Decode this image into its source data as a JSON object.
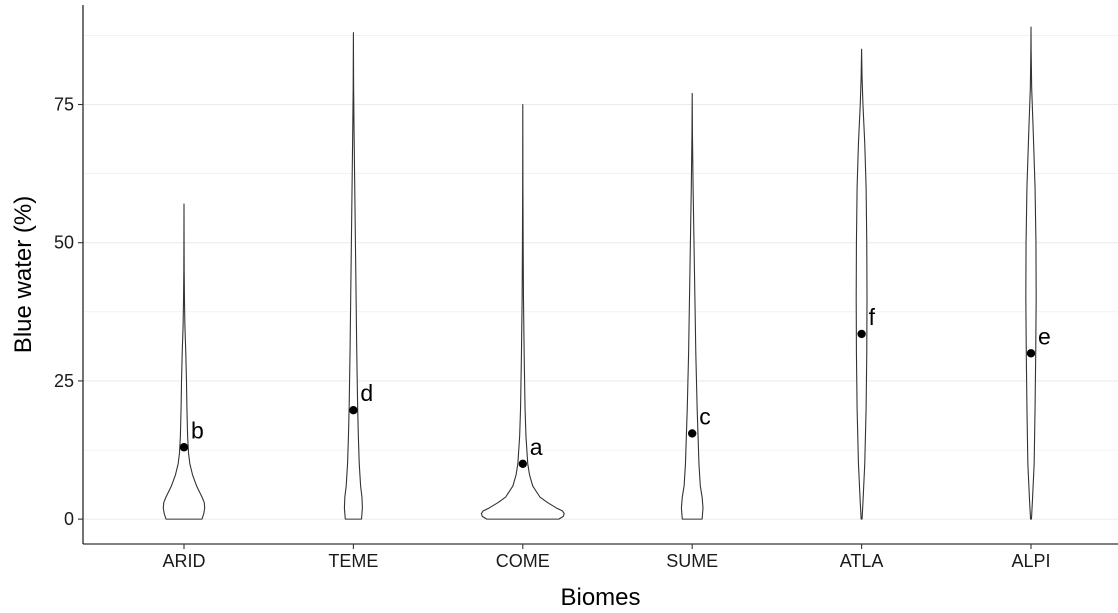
{
  "chart_data": {
    "type": "violin",
    "xlabel": "Biomes",
    "ylabel": "Blue water (%)",
    "ylim": [
      -4.5,
      93
    ],
    "yticks": [
      0,
      25,
      50,
      75
    ],
    "minor_gridlines": [
      12.5,
      37.5,
      62.5,
      87.5
    ],
    "grid": "horizontal",
    "categories": [
      "ARID",
      "TEME",
      "COME",
      "SUME",
      "ATLA",
      "ALPI"
    ],
    "violins": [
      {
        "category": "ARID",
        "min": 0,
        "max": 57,
        "mean": 13,
        "label": "b",
        "profile": [
          [
            0,
            0.4
          ],
          [
            1,
            0.44
          ],
          [
            2,
            0.46
          ],
          [
            3,
            0.45
          ],
          [
            4,
            0.4
          ],
          [
            5,
            0.34
          ],
          [
            6,
            0.28
          ],
          [
            8,
            0.19
          ],
          [
            10,
            0.13
          ],
          [
            12,
            0.1
          ],
          [
            15,
            0.08
          ],
          [
            20,
            0.065
          ],
          [
            25,
            0.055
          ],
          [
            30,
            0.04
          ],
          [
            35,
            0.02
          ],
          [
            40,
            0.01
          ],
          [
            45,
            0.004
          ],
          [
            50,
            0.002
          ],
          [
            57,
            0.0
          ]
        ]
      },
      {
        "category": "TEME",
        "min": 0,
        "max": 88,
        "mean": 19.7,
        "label": "d",
        "profile": [
          [
            0,
            0.18
          ],
          [
            2,
            0.2
          ],
          [
            4,
            0.19
          ],
          [
            6,
            0.16
          ],
          [
            10,
            0.13
          ],
          [
            15,
            0.11
          ],
          [
            20,
            0.095
          ],
          [
            25,
            0.085
          ],
          [
            30,
            0.075
          ],
          [
            40,
            0.06
          ],
          [
            50,
            0.045
          ],
          [
            60,
            0.03
          ],
          [
            70,
            0.015
          ],
          [
            78,
            0.005
          ],
          [
            88,
            0.0
          ]
        ]
      },
      {
        "category": "COME",
        "min": 0,
        "max": 75,
        "mean": 10,
        "label": "a",
        "profile": [
          [
            0,
            0.8
          ],
          [
            0.5,
            0.9
          ],
          [
            1,
            0.92
          ],
          [
            1.5,
            0.88
          ],
          [
            2,
            0.75
          ],
          [
            3,
            0.55
          ],
          [
            4,
            0.38
          ],
          [
            6,
            0.22
          ],
          [
            8,
            0.15
          ],
          [
            10,
            0.11
          ],
          [
            15,
            0.07
          ],
          [
            20,
            0.05
          ],
          [
            30,
            0.03
          ],
          [
            40,
            0.015
          ],
          [
            50,
            0.008
          ],
          [
            60,
            0.003
          ],
          [
            75,
            0.0
          ]
        ]
      },
      {
        "category": "SUME",
        "min": 0,
        "max": 77,
        "mean": 15.5,
        "label": "c",
        "profile": [
          [
            0,
            0.22
          ],
          [
            2,
            0.24
          ],
          [
            4,
            0.22
          ],
          [
            6,
            0.18
          ],
          [
            10,
            0.15
          ],
          [
            15,
            0.13
          ],
          [
            20,
            0.11
          ],
          [
            30,
            0.08
          ],
          [
            40,
            0.06
          ],
          [
            50,
            0.04
          ],
          [
            60,
            0.02
          ],
          [
            70,
            0.005
          ],
          [
            77,
            0.0
          ]
        ]
      },
      {
        "category": "ATLA",
        "min": 0,
        "max": 85,
        "mean": 33.5,
        "label": "f",
        "profile": [
          [
            0,
            0.01
          ],
          [
            3,
            0.03
          ],
          [
            10,
            0.07
          ],
          [
            20,
            0.1
          ],
          [
            30,
            0.115
          ],
          [
            40,
            0.12
          ],
          [
            50,
            0.115
          ],
          [
            60,
            0.1
          ],
          [
            68,
            0.07
          ],
          [
            75,
            0.03
          ],
          [
            80,
            0.01
          ],
          [
            85,
            0.0
          ]
        ]
      },
      {
        "category": "ALPI",
        "min": 0,
        "max": 89,
        "mean": 30,
        "label": "e",
        "profile": [
          [
            0,
            0.01
          ],
          [
            3,
            0.03
          ],
          [
            10,
            0.07
          ],
          [
            20,
            0.09
          ],
          [
            30,
            0.105
          ],
          [
            40,
            0.115
          ],
          [
            50,
            0.11
          ],
          [
            60,
            0.09
          ],
          [
            70,
            0.05
          ],
          [
            78,
            0.015
          ],
          [
            85,
            0.003
          ],
          [
            89,
            0.0
          ]
        ]
      }
    ]
  }
}
